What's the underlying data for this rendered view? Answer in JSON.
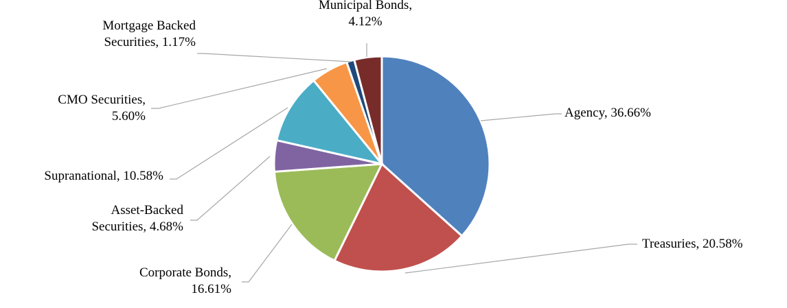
{
  "chart_data": {
    "type": "pie",
    "title": "",
    "legend": "none",
    "slices": [
      {
        "name": "Agency",
        "value": 36.66,
        "label_lines": [
          "Agency, 36.66%"
        ],
        "color": "#4f81bd"
      },
      {
        "name": "Treasuries",
        "value": 20.58,
        "label_lines": [
          "Treasuries, 20.58%"
        ],
        "color": "#c0504d"
      },
      {
        "name": "Corporate Bonds",
        "value": 16.61,
        "label_lines": [
          "Corporate Bonds,",
          "16.61%"
        ],
        "color": "#9bbb59"
      },
      {
        "name": "Asset-Backed Securities",
        "value": 4.68,
        "label_lines": [
          "Asset-Backed",
          "Securities, 4.68%"
        ],
        "color": "#8064a2"
      },
      {
        "name": "Supranational",
        "value": 10.58,
        "label_lines": [
          "Supranational, 10.58%"
        ],
        "color": "#4bacc6"
      },
      {
        "name": "CMO Securities",
        "value": 5.6,
        "label_lines": [
          "CMO Securities,",
          "5.60%"
        ],
        "color": "#f79646"
      },
      {
        "name": "Mortgage Backed Securities",
        "value": 1.17,
        "label_lines": [
          "Mortgage Backed",
          "Securities, 1.17%"
        ],
        "color": "#1f497d"
      },
      {
        "name": "Municipal Bonds",
        "value": 4.12,
        "label_lines": [
          "Municipal Bonds,",
          "4.12%"
        ],
        "color": "#772c2a"
      }
    ]
  }
}
